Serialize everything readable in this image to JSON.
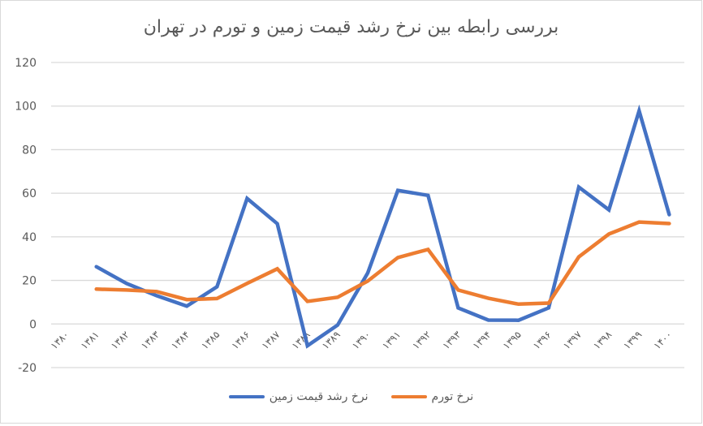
{
  "chart_data": {
    "type": "line",
    "title": "بررسی رابطه بین نرخ رشد قیمت زمین و تورم در تهران",
    "xlabel": "",
    "ylabel": "",
    "ylim": [
      -20,
      120
    ],
    "yticks": [
      -20,
      0,
      20,
      40,
      60,
      80,
      100,
      120
    ],
    "grid": true,
    "legend_position": "bottom",
    "categories": [
      "۱۳۸۰",
      "۱۳۸۱",
      "۱۳۸۲",
      "۱۳۸۳",
      "۱۳۸۴",
      "۱۳۸۵",
      "۱۳۸۶",
      "۱۳۸۷",
      "۱۳۸۸",
      "۱۳۸۹",
      "۱۳۹۰",
      "۱۳۹۱",
      "۱۳۹۲",
      "۱۳۹۳",
      "۱۳۹۴",
      "۱۳۹۵",
      "۱۳۹۶",
      "۱۳۹۷",
      "۱۳۹۸",
      "۱۳۹۹",
      "۱۴۰۰"
    ],
    "series": [
      {
        "name": "نرخ رشد قیمت زمین",
        "color": "#4472c4",
        "values": [
          null,
          26.3,
          18.6,
          13.0,
          8.2,
          17.1,
          57.6,
          46.0,
          -10.0,
          -0.5,
          23.4,
          61.3,
          59.0,
          7.4,
          1.8,
          1.7,
          7.4,
          62.8,
          52.4,
          97.8,
          50.2
        ]
      },
      {
        "name": "نرخ تورم",
        "color": "#ed7d31",
        "values": [
          null,
          16.0,
          15.6,
          14.9,
          11.2,
          11.7,
          18.6,
          25.3,
          10.4,
          12.3,
          19.7,
          30.5,
          34.2,
          15.6,
          11.8,
          9.1,
          9.6,
          30.8,
          41.3,
          46.8,
          46.1
        ]
      }
    ]
  },
  "colors": {
    "gridline": "#d9d9d9",
    "axis_text": "#595959",
    "border": "#d9d9d9"
  }
}
